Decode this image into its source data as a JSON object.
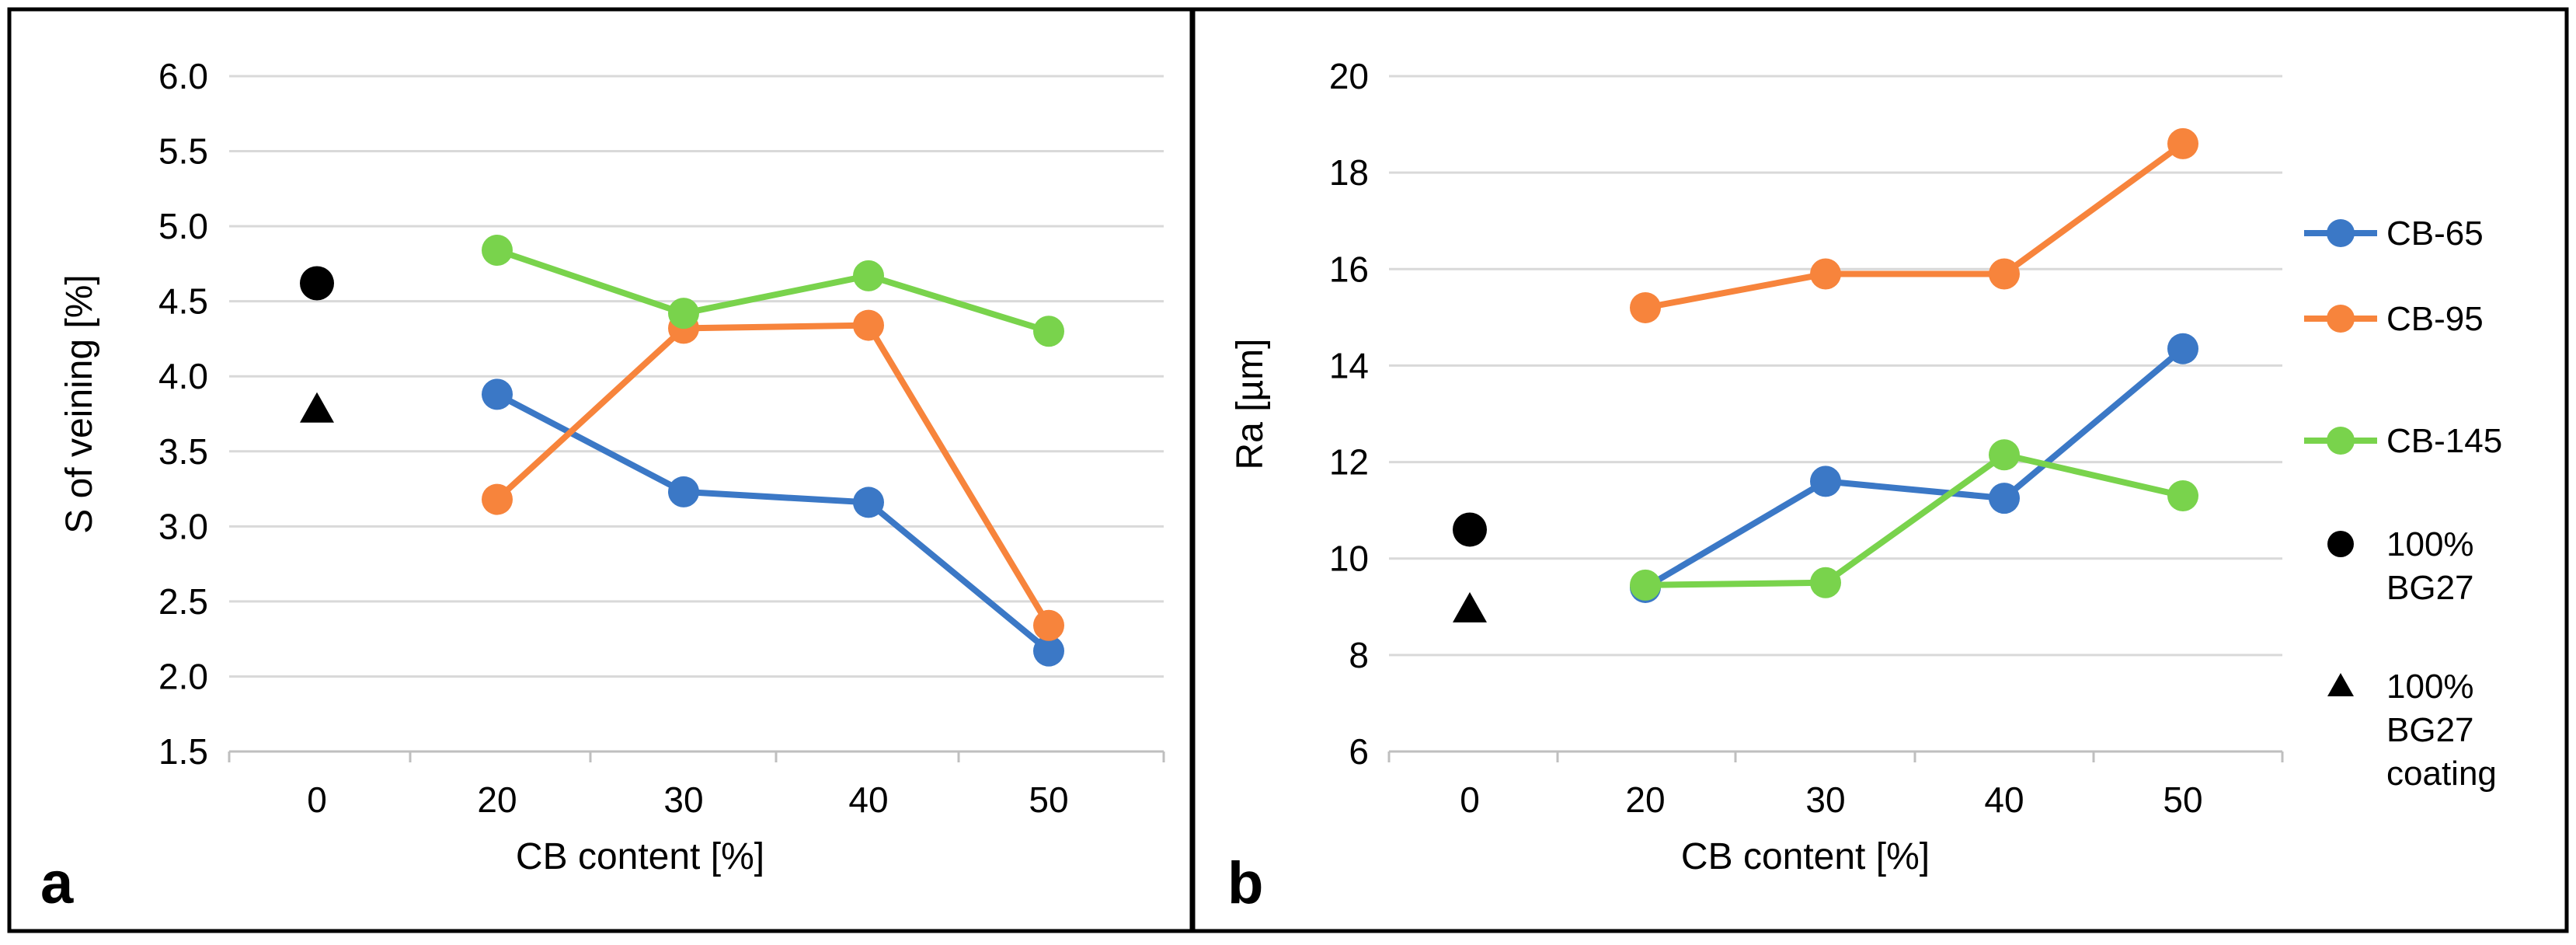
{
  "chart_data": [
    {
      "panel": "a",
      "type": "line",
      "categories": [
        "0",
        "20",
        "30",
        "40",
        "50"
      ],
      "xlabel": "CB content [%]",
      "ylabel": "S of veining [%]",
      "ylim": [
        1.5,
        6.0
      ],
      "yticks": [
        "1.5",
        "2.0",
        "2.5",
        "3.0",
        "3.5",
        "4.0",
        "4.5",
        "5.0",
        "5.5",
        "6.0"
      ],
      "grid": true,
      "series": [
        {
          "name": "CB-65",
          "color": "#3b78c6",
          "x": [
            "20",
            "30",
            "40",
            "50"
          ],
          "values": [
            3.88,
            3.23,
            3.16,
            2.17
          ]
        },
        {
          "name": "CB-95",
          "color": "#f7843c",
          "x": [
            "20",
            "30",
            "40",
            "50"
          ],
          "values": [
            3.18,
            4.32,
            4.34,
            2.34
          ]
        },
        {
          "name": "CB-145",
          "color": "#79d34c",
          "x": [
            "20",
            "30",
            "40",
            "50"
          ],
          "values": [
            4.84,
            4.42,
            4.67,
            4.3
          ]
        },
        {
          "name": "100% BG27",
          "color": "#000000",
          "marker": "circle",
          "x": [
            "0"
          ],
          "values": [
            4.62
          ]
        },
        {
          "name": "100% BG27 coating",
          "color": "#000000",
          "marker": "triangle",
          "x": [
            "0"
          ],
          "values": [
            3.78
          ]
        }
      ]
    },
    {
      "panel": "b",
      "type": "line",
      "categories": [
        "0",
        "20",
        "30",
        "40",
        "50"
      ],
      "xlabel": "CB content [%]",
      "ylabel": "Ra [µm]",
      "ylim": [
        6,
        20
      ],
      "yticks": [
        "6",
        "8",
        "10",
        "12",
        "14",
        "16",
        "18",
        "20"
      ],
      "grid": true,
      "legend_position": "right",
      "series": [
        {
          "name": "CB-65",
          "color": "#3b78c6",
          "x": [
            "20",
            "30",
            "40",
            "50"
          ],
          "values": [
            9.4,
            11.6,
            11.25,
            14.35
          ]
        },
        {
          "name": "CB-95",
          "color": "#f7843c",
          "x": [
            "20",
            "30",
            "40",
            "50"
          ],
          "values": [
            15.2,
            15.9,
            15.9,
            18.6
          ]
        },
        {
          "name": "CB-145",
          "color": "#79d34c",
          "x": [
            "20",
            "30",
            "40",
            "50"
          ],
          "values": [
            9.45,
            9.5,
            12.15,
            11.3
          ]
        },
        {
          "name": "100% BG27",
          "color": "#000000",
          "marker": "circle",
          "x": [
            "0"
          ],
          "values": [
            10.6
          ]
        },
        {
          "name": "100% BG27 coating",
          "color": "#000000",
          "marker": "triangle",
          "x": [
            "0"
          ],
          "values": [
            8.95
          ]
        }
      ]
    }
  ],
  "legend": [
    {
      "name": "CB-65",
      "label": "CB-65",
      "color": "#3b78c6",
      "marker": "line"
    },
    {
      "name": "CB-95",
      "label": "CB-95",
      "color": "#f7843c",
      "marker": "line"
    },
    {
      "name": "CB-145",
      "label": "CB-145",
      "color": "#79d34c",
      "marker": "line"
    },
    {
      "name": "100% BG27",
      "label": [
        "100%",
        "BG27"
      ],
      "color": "#000000",
      "marker": "circle"
    },
    {
      "name": "100% BG27 coating",
      "label": [
        "100%",
        "BG27",
        "coating"
      ],
      "color": "#000000",
      "marker": "triangle"
    }
  ]
}
